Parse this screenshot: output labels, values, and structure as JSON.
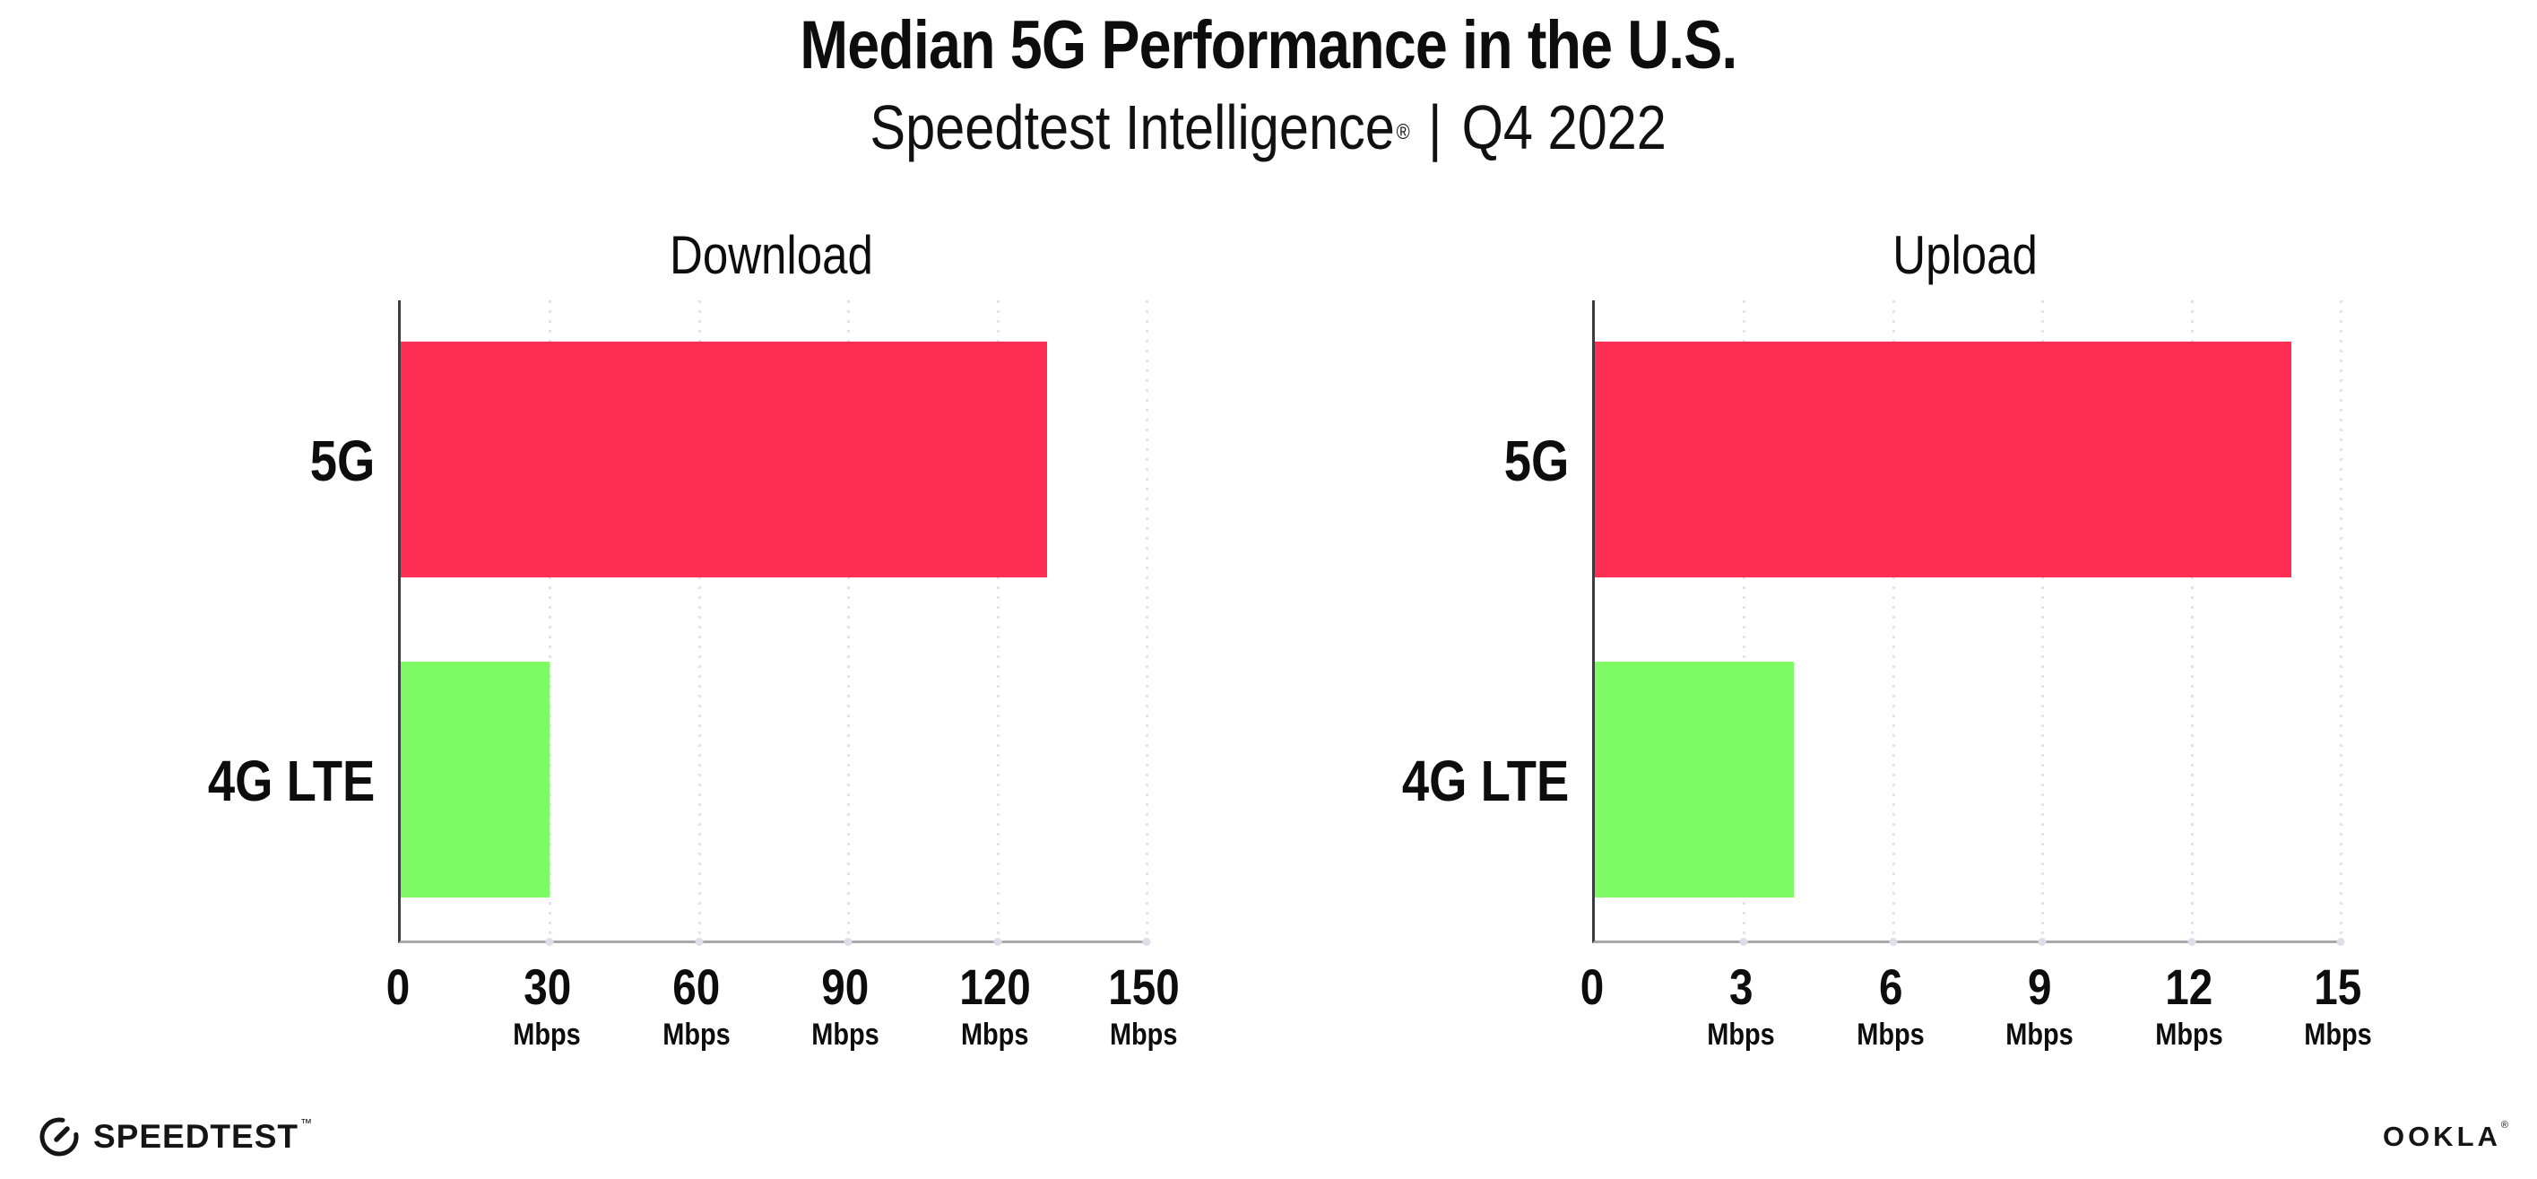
{
  "header": {
    "title": "Median 5G Performance in the U.S.",
    "subtitle": {
      "brand": "Speedtest Intelligence",
      "registered_mark": "®",
      "divider": "|",
      "period": "Q4 2022"
    }
  },
  "chart_data": [
    {
      "type": "bar",
      "orientation": "horizontal",
      "title": "Download",
      "categories": [
        "5G",
        "4G LTE"
      ],
      "values": [
        130,
        30
      ],
      "unit": "Mbps",
      "xlim": [
        0,
        150
      ],
      "xticks": [
        0,
        30,
        60,
        90,
        120,
        150
      ],
      "bar_colors": [
        "#FF2E54",
        "#7DFA64"
      ],
      "grid": "dotted-vertical",
      "legend": "none"
    },
    {
      "type": "bar",
      "orientation": "horizontal",
      "title": "Upload",
      "categories": [
        "5G",
        "4G LTE"
      ],
      "values": [
        14,
        4
      ],
      "unit": "Mbps",
      "xlim": [
        0,
        15
      ],
      "xticks": [
        0,
        3,
        6,
        9,
        12,
        15
      ],
      "bar_colors": [
        "#FF2E54",
        "#7DFA64"
      ],
      "grid": "dotted-vertical",
      "legend": "none"
    }
  ],
  "footer": {
    "speedtest_text": "SPEEDTEST",
    "speedtest_mark": "™",
    "ookla_text": "OOKLA",
    "ookla_mark": "®"
  },
  "colors": {
    "bar_5g": "#FF2E54",
    "bar_4g_lte": "#7DFA64",
    "gridline": "#E1E3EE",
    "y_axis_line": "#3C3C40",
    "x_axis_line": "#A9A9AD",
    "text": "#0D0D0D",
    "background": "#FFFFFF"
  }
}
